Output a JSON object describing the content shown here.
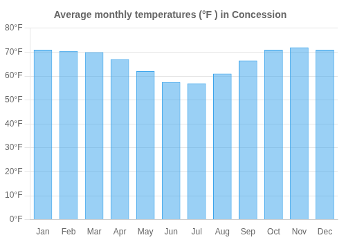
{
  "chart_data": {
    "type": "bar",
    "title": "Average monthly temperatures (°F ) in Concession",
    "categories": [
      "Jan",
      "Feb",
      "Mar",
      "Apr",
      "May",
      "Jun",
      "Jul",
      "Aug",
      "Sep",
      "Oct",
      "Nov",
      "Dec"
    ],
    "values": [
      71,
      70.5,
      70,
      67,
      62,
      57.5,
      57,
      61,
      66.5,
      71,
      72,
      71
    ],
    "ylim": [
      0,
      80
    ],
    "yticks": [
      {
        "value": 0,
        "label": "0°F"
      },
      {
        "value": 10,
        "label": "10°F"
      },
      {
        "value": 20,
        "label": "20°F"
      },
      {
        "value": 30,
        "label": "30°F"
      },
      {
        "value": 40,
        "label": "40°F"
      },
      {
        "value": 50,
        "label": "50°F"
      },
      {
        "value": 60,
        "label": "60°F"
      },
      {
        "value": 70,
        "label": "70°F"
      },
      {
        "value": 80,
        "label": "80°F"
      }
    ],
    "grid": true
  }
}
